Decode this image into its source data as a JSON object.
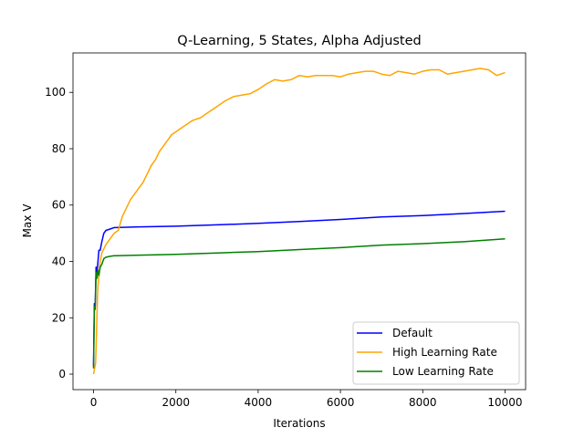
{
  "chart_data": {
    "type": "line",
    "title": "Q-Learning, 5 States, Alpha Adjusted",
    "xlabel": "Iterations",
    "ylabel": "Max V",
    "xlim": [
      -500,
      10500
    ],
    "ylim": [
      -5.5,
      114
    ],
    "xticks": [
      0,
      2000,
      4000,
      6000,
      8000,
      10000
    ],
    "yticks": [
      0,
      20,
      40,
      60,
      80,
      100
    ],
    "grid": false,
    "legend_position": "lower-right",
    "series": [
      {
        "name": "Default",
        "color": "#0000ff",
        "x": [
          0,
          20,
          40,
          60,
          80,
          100,
          130,
          160,
          200,
          250,
          300,
          400,
          500,
          1000,
          2000,
          3000,
          4000,
          5000,
          6000,
          7000,
          8000,
          9000,
          10000
        ],
        "y": [
          3,
          25,
          24,
          38,
          36,
          39,
          44,
          44,
          47,
          50,
          51,
          51.5,
          52,
          52.2,
          52.5,
          53,
          53.5,
          54.2,
          54.9,
          55.8,
          56.3,
          57,
          57.8
        ]
      },
      {
        "name": "High Learning Rate",
        "color": "#ffa500",
        "x": [
          0,
          50,
          100,
          150,
          200,
          300,
          400,
          500,
          600,
          700,
          800,
          900,
          1000,
          1100,
          1200,
          1300,
          1400,
          1500,
          1600,
          1700,
          1800,
          1900,
          2000,
          2200,
          2400,
          2600,
          2800,
          3000,
          3200,
          3400,
          3600,
          3800,
          4000,
          4200,
          4400,
          4600,
          4800,
          5000,
          5200,
          5400,
          5600,
          5800,
          6000,
          6200,
          6400,
          6600,
          6800,
          7000,
          7200,
          7400,
          7600,
          7800,
          8000,
          8200,
          8400,
          8600,
          8800,
          9000,
          9200,
          9400,
          9600,
          9800,
          10000
        ],
        "y": [
          0,
          4,
          30,
          39,
          43,
          46,
          48,
          50,
          51,
          56,
          59,
          62,
          64,
          66,
          68,
          71,
          74,
          76,
          79,
          81,
          83,
          85,
          86,
          88,
          90,
          91,
          93,
          95,
          97,
          98.5,
          99,
          99.5,
          101,
          103,
          104.5,
          104,
          104.5,
          106,
          105.5,
          106,
          106,
          106,
          105.5,
          106.5,
          107,
          107.5,
          107.5,
          106.5,
          106,
          107.5,
          107,
          106.5,
          107.5,
          108,
          108,
          106.5,
          107,
          107.5,
          108,
          108.5,
          108,
          106,
          107
        ]
      },
      {
        "name": "Low Learning Rate",
        "color": "#008000",
        "x": [
          0,
          20,
          40,
          60,
          80,
          100,
          130,
          160,
          200,
          250,
          300,
          400,
          500,
          1000,
          2000,
          3000,
          4000,
          5000,
          6000,
          7000,
          8000,
          9000,
          10000
        ],
        "y": [
          2,
          24,
          23,
          36,
          34,
          37,
          35,
          38,
          39,
          41,
          41.5,
          41.8,
          42,
          42.2,
          42.5,
          43,
          43.5,
          44.2,
          44.9,
          45.8,
          46.3,
          47,
          48
        ]
      }
    ]
  }
}
